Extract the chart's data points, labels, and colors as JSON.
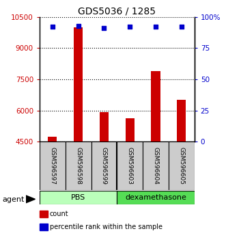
{
  "title": "GDS5036 / 1285",
  "samples": [
    "GSM596597",
    "GSM596598",
    "GSM596599",
    "GSM596603",
    "GSM596604",
    "GSM596605"
  ],
  "counts": [
    4720,
    10000,
    5920,
    5620,
    7900,
    6520
  ],
  "percentiles": [
    92,
    93,
    91,
    92,
    92,
    92
  ],
  "ylim_left": [
    4500,
    10500
  ],
  "ylim_right": [
    0,
    100
  ],
  "yticks_left": [
    4500,
    6000,
    7500,
    9000,
    10500
  ],
  "yticks_right": [
    0,
    25,
    50,
    75,
    100
  ],
  "groups": [
    {
      "label": "PBS",
      "indices": [
        0,
        1,
        2
      ],
      "color": "#bbffbb"
    },
    {
      "label": "dexamethasone",
      "indices": [
        3,
        4,
        5
      ],
      "color": "#55dd55"
    }
  ],
  "bar_color": "#cc0000",
  "dot_color": "#0000cc",
  "bar_width": 0.35,
  "grid_linestyle": "dotted",
  "background_color": "#ffffff",
  "tick_color_left": "#cc0000",
  "tick_color_right": "#0000cc",
  "agent_label": "agent",
  "legend_items": [
    {
      "label": "count",
      "color": "#cc0000"
    },
    {
      "label": "percentile rank within the sample",
      "color": "#0000cc"
    }
  ]
}
